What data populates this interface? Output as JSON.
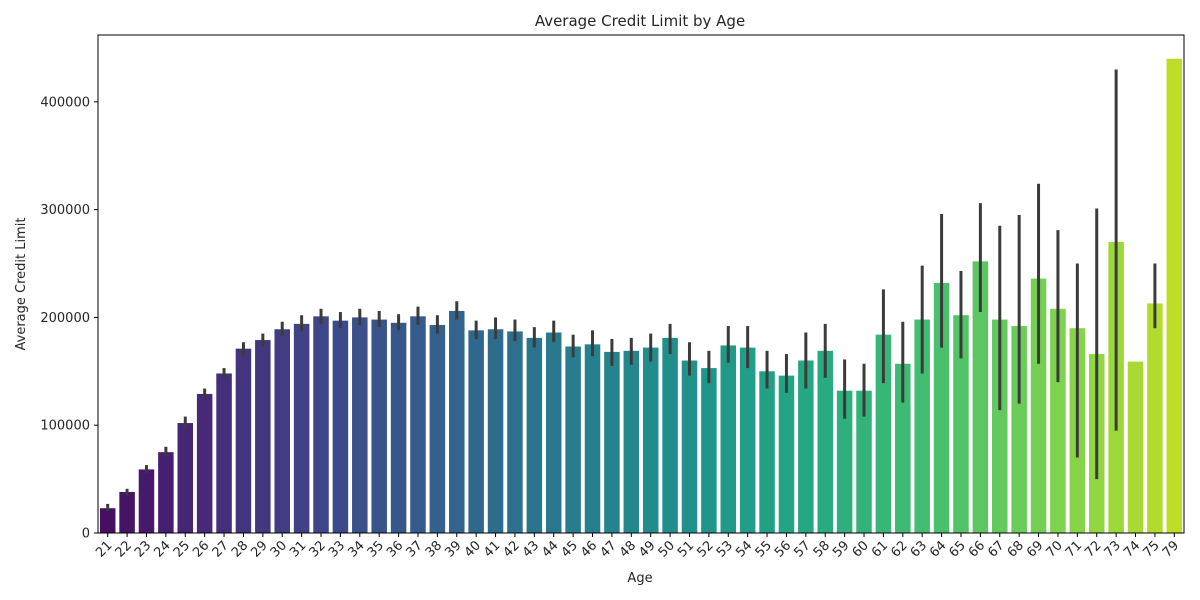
{
  "chart_data": {
    "type": "bar",
    "title": "Average Credit Limit by Age",
    "xlabel": "Age",
    "ylabel": "Average Credit Limit",
    "ylim": [
      0,
      462000
    ],
    "yticks": [
      0,
      100000,
      200000,
      300000,
      400000
    ],
    "ytick_labels": [
      "0",
      "100000",
      "200000",
      "300000",
      "400000"
    ],
    "grid": false,
    "palette": "viridis",
    "error_bar_color": "#3b3b3b",
    "categories": [
      "21",
      "22",
      "23",
      "24",
      "25",
      "26",
      "27",
      "28",
      "29",
      "30",
      "31",
      "32",
      "33",
      "34",
      "35",
      "36",
      "37",
      "38",
      "39",
      "40",
      "41",
      "42",
      "43",
      "44",
      "45",
      "46",
      "47",
      "48",
      "49",
      "50",
      "51",
      "52",
      "53",
      "54",
      "55",
      "56",
      "57",
      "58",
      "59",
      "60",
      "61",
      "62",
      "63",
      "64",
      "65",
      "66",
      "67",
      "68",
      "69",
      "70",
      "71",
      "72",
      "73",
      "74",
      "75",
      "79"
    ],
    "values": [
      23000,
      38000,
      59000,
      75000,
      102000,
      129000,
      148000,
      171000,
      179000,
      189000,
      194000,
      201000,
      197000,
      200000,
      198000,
      195000,
      201000,
      193000,
      206000,
      188000,
      189000,
      187000,
      181000,
      186000,
      173000,
      175000,
      168000,
      169000,
      172000,
      181000,
      160000,
      153000,
      174000,
      172000,
      150000,
      146000,
      160000,
      169000,
      132000,
      132000,
      184000,
      157000,
      198000,
      232000,
      202000,
      252000,
      198000,
      192000,
      236000,
      208000,
      190000,
      166000,
      270000,
      159000,
      213000,
      440000
    ],
    "error_low": [
      20000,
      35000,
      56000,
      71000,
      97000,
      124000,
      143000,
      165000,
      173000,
      183000,
      187000,
      194000,
      190000,
      193000,
      191000,
      188000,
      193000,
      185000,
      198000,
      180000,
      180000,
      178000,
      172000,
      177000,
      163000,
      164000,
      155000,
      156000,
      159000,
      166000,
      146000,
      139000,
      158000,
      153000,
      134000,
      130000,
      134000,
      144000,
      106000,
      108000,
      139000,
      121000,
      148000,
      172000,
      162000,
      205000,
      114000,
      120000,
      157000,
      140000,
      70000,
      50000,
      95000,
      159000,
      190000,
      440000
    ],
    "error_high": [
      27000,
      41000,
      63000,
      80000,
      108000,
      134000,
      153000,
      177000,
      185000,
      196000,
      202000,
      208000,
      205000,
      208000,
      206000,
      203000,
      210000,
      202000,
      215000,
      197000,
      200000,
      198000,
      191000,
      197000,
      184000,
      188000,
      180000,
      181000,
      185000,
      194000,
      177000,
      169000,
      192000,
      192000,
      169000,
      166000,
      186000,
      194000,
      161000,
      157000,
      226000,
      196000,
      248000,
      296000,
      243000,
      306000,
      285000,
      295000,
      324000,
      281000,
      250000,
      301000,
      430000,
      159000,
      250000,
      440000
    ]
  }
}
